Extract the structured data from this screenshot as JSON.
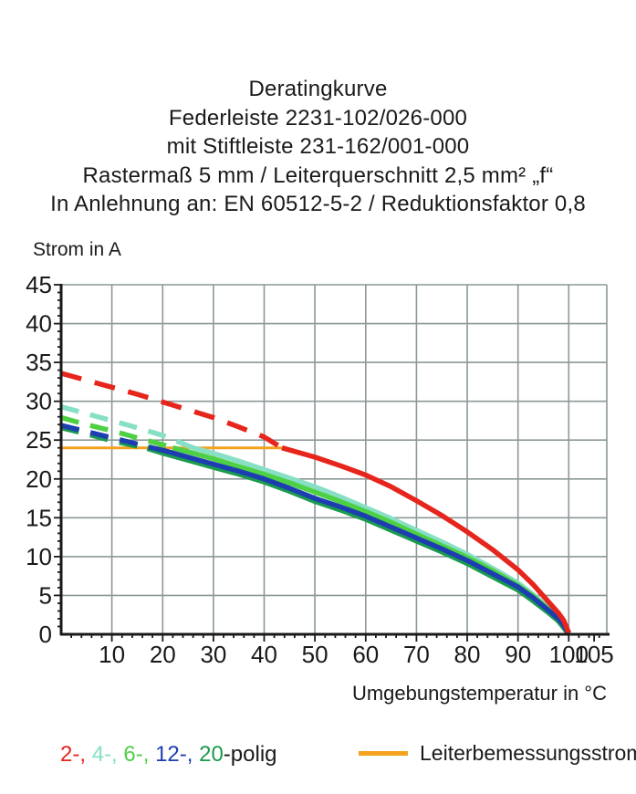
{
  "title": {
    "lines": [
      "Deratingkurve",
      "Federleiste 2231-102/026-000",
      "mit Stiftleiste 231-162/001-000",
      "Rastermaß 5 mm / Leiterquerschnitt 2,5 mm² „f“",
      "In Anlehnung an: EN 60512-5-2 / Reduktionsfaktor 0,8"
    ]
  },
  "labels": {
    "y_axis": "Strom in A",
    "x_axis": "Umgebungstemperatur in °C"
  },
  "legend": {
    "poles_parts": [
      {
        "text": "2-, ",
        "color": "#e6251c"
      },
      {
        "text": "4-, ",
        "color": "#87dfc5"
      },
      {
        "text": "6-, ",
        "color": "#4ed044"
      },
      {
        "text": "12-, ",
        "color": "#1d3eb1"
      },
      {
        "text": "20",
        "color": "#1a9b4e"
      },
      {
        "text": "-polig",
        "color": "#1a1a1a"
      }
    ],
    "rated": {
      "label": "Leiterbemessungsstrom",
      "color": "#f4a11d"
    }
  },
  "chart_data": {
    "type": "line",
    "title": "Deratingkurve Federleiste 2231-102/026-000 mit Stiftleiste 231-162/001-000",
    "xlabel": "Umgebungstemperatur in °C",
    "ylabel": "Strom in A",
    "xlim": [
      0,
      107.5
    ],
    "ylim": [
      0,
      45
    ],
    "grid": true,
    "x_ticks": [
      10,
      20,
      30,
      40,
      50,
      60,
      70,
      80,
      90,
      100,
      105
    ],
    "x_gridlines": [
      10,
      20,
      30,
      40,
      50,
      60,
      70,
      80,
      90,
      100
    ],
    "y_ticks": [
      0,
      5,
      10,
      15,
      20,
      25,
      30,
      35,
      40,
      45
    ],
    "colors": {
      "grid": "#8c9898",
      "axis": "#1a1a1a",
      "text": "#1a1a1a"
    },
    "rated_current_line": {
      "label": "Leiterbemessungsstrom",
      "value": 24,
      "x_start": 0,
      "x_end": 43.5,
      "color": "#f4a11d"
    },
    "legend_position": "bottom",
    "series": [
      {
        "name": "4-polig",
        "color": "#87dfc5",
        "width": 5.5,
        "dash": "20 13",
        "dash_until": 26,
        "points": [
          [
            0,
            29.3
          ],
          [
            5,
            28.4
          ],
          [
            10,
            27.5
          ],
          [
            15,
            26.6
          ],
          [
            20,
            25.6
          ],
          [
            26,
            24.0
          ],
          [
            30,
            23.3
          ],
          [
            35,
            22.3
          ],
          [
            40,
            21.2
          ],
          [
            45,
            20.1
          ],
          [
            50,
            19.0
          ],
          [
            55,
            17.7
          ],
          [
            60,
            16.3
          ],
          [
            65,
            14.9
          ],
          [
            70,
            13.4
          ],
          [
            75,
            11.9
          ],
          [
            80,
            10.3
          ],
          [
            85,
            8.5
          ],
          [
            90,
            6.6
          ],
          [
            93,
            5.1
          ],
          [
            96,
            3.4
          ],
          [
            98,
            2.2
          ],
          [
            99,
            1.4
          ],
          [
            100,
            0.2
          ]
        ]
      },
      {
        "name": "6-polig",
        "color": "#4ed044",
        "width": 5.5,
        "dash": "20 13",
        "dash_until": 22,
        "points": [
          [
            0,
            27.9
          ],
          [
            5,
            27.0
          ],
          [
            10,
            26.2
          ],
          [
            15,
            25.3
          ],
          [
            20,
            24.4
          ],
          [
            22,
            24.0
          ],
          [
            25,
            23.5
          ],
          [
            30,
            22.6
          ],
          [
            35,
            21.6
          ],
          [
            40,
            20.6
          ],
          [
            45,
            19.5
          ],
          [
            50,
            18.3
          ],
          [
            55,
            17.1
          ],
          [
            60,
            15.8
          ],
          [
            65,
            14.4
          ],
          [
            70,
            12.9
          ],
          [
            75,
            11.4
          ],
          [
            80,
            9.9
          ],
          [
            85,
            8.2
          ],
          [
            90,
            6.3
          ],
          [
            93,
            4.9
          ],
          [
            96,
            3.2
          ],
          [
            98,
            2.1
          ],
          [
            99,
            1.3
          ],
          [
            100,
            0.2
          ]
        ]
      },
      {
        "name": "20-polig",
        "color": "#1a9b4e",
        "width": 7,
        "dash": "20 13",
        "dash_until": 17,
        "points": [
          [
            0,
            26.7
          ],
          [
            5,
            25.9
          ],
          [
            10,
            25.0
          ],
          [
            15,
            24.3
          ],
          [
            17,
            24.0
          ],
          [
            20,
            23.4
          ],
          [
            25,
            22.5
          ],
          [
            30,
            21.6
          ],
          [
            35,
            20.7
          ],
          [
            40,
            19.7
          ],
          [
            45,
            18.5
          ],
          [
            50,
            17.2
          ],
          [
            55,
            16.1
          ],
          [
            60,
            14.9
          ],
          [
            65,
            13.5
          ],
          [
            70,
            12.1
          ],
          [
            75,
            10.7
          ],
          [
            80,
            9.2
          ],
          [
            85,
            7.5
          ],
          [
            90,
            5.8
          ],
          [
            93,
            4.4
          ],
          [
            96,
            2.9
          ],
          [
            98,
            1.8
          ],
          [
            99,
            1.0
          ],
          [
            100,
            0.1
          ]
        ]
      },
      {
        "name": "12-polig",
        "color": "#1d3eb1",
        "width": 5.5,
        "dash": "20 13",
        "dash_until": 18,
        "points": [
          [
            0,
            26.9
          ],
          [
            5,
            26.1
          ],
          [
            10,
            25.3
          ],
          [
            15,
            24.5
          ],
          [
            18,
            24.0
          ],
          [
            20,
            23.7
          ],
          [
            25,
            22.8
          ],
          [
            30,
            21.9
          ],
          [
            35,
            21.0
          ],
          [
            40,
            20.0
          ],
          [
            45,
            18.8
          ],
          [
            50,
            17.5
          ],
          [
            55,
            16.4
          ],
          [
            60,
            15.2
          ],
          [
            65,
            13.8
          ],
          [
            70,
            12.4
          ],
          [
            75,
            11.0
          ],
          [
            80,
            9.5
          ],
          [
            85,
            7.8
          ],
          [
            90,
            6.1
          ],
          [
            93,
            4.7
          ],
          [
            96,
            3.1
          ],
          [
            98,
            2.0
          ],
          [
            99,
            1.2
          ],
          [
            100,
            0.1
          ]
        ]
      },
      {
        "name": "2-polig",
        "color": "#e6251c",
        "width": 5.5,
        "dash": "23 15",
        "dash_until": 43.5,
        "points": [
          [
            0,
            33.6
          ],
          [
            5,
            32.7
          ],
          [
            10,
            31.8
          ],
          [
            15,
            30.9
          ],
          [
            20,
            29.9
          ],
          [
            25,
            28.9
          ],
          [
            30,
            27.9
          ],
          [
            35,
            26.7
          ],
          [
            40,
            25.4
          ],
          [
            43.5,
            24.0
          ],
          [
            50,
            22.8
          ],
          [
            55,
            21.7
          ],
          [
            60,
            20.5
          ],
          [
            65,
            19.0
          ],
          [
            70,
            17.2
          ],
          [
            75,
            15.3
          ],
          [
            80,
            13.2
          ],
          [
            85,
            10.9
          ],
          [
            90,
            8.3
          ],
          [
            93,
            6.4
          ],
          [
            96,
            4.2
          ],
          [
            98,
            2.7
          ],
          [
            99,
            1.8
          ],
          [
            100,
            0.2
          ]
        ]
      }
    ]
  }
}
